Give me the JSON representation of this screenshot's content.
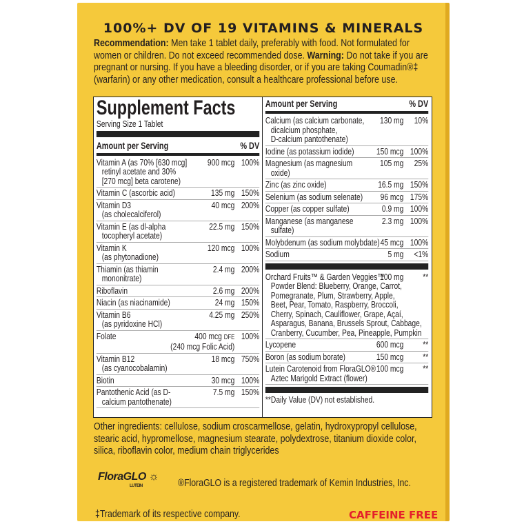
{
  "headline": "100%+ DV OF 19 VITAMINS & MINERALS",
  "intro": {
    "rec_label": "Recommendation:",
    "rec_text": " Men take 1 tablet daily, preferably with food. Not formulated for women or children. Do not exceed recommended dose. ",
    "warn_label": "Warning:",
    "warn_text": " Do not take if you are pregnant or nursing. If you have a bleeding disorder, or if you are taking Coumadin®‡ (warfarin) or any other medication, consult a healthcare professional before use."
  },
  "facts": {
    "title": "Supplement Facts",
    "serving": "Serving Size 1 Tablet",
    "amount_header": "Amount per Serving",
    "dv_header": "% DV",
    "left": [
      {
        "name": "Vitamin A (as 70% [630 mcg]\nretinyl acetate and 30%\n[270 mcg] beta carotene)",
        "amount": "900 mcg",
        "dv": "100%"
      },
      {
        "name": "Vitamin C (ascorbic acid)",
        "amount": "135 mg",
        "dv": "150%"
      },
      {
        "name": "Vitamin D3\n(as cholecalciferol)",
        "amount": "40 mcg",
        "dv": "200%"
      },
      {
        "name": "Vitamin E (as dl-alpha\ntocopheryl acetate)",
        "amount": "22.5 mg",
        "dv": "150%"
      },
      {
        "name": "Vitamin K\n(as phytonadione)",
        "amount": "120 mcg",
        "dv": "100%"
      },
      {
        "name": "Thiamin (as thiamin\nmononitrate)",
        "amount": "2.4 mg",
        "dv": "200%"
      },
      {
        "name": "Riboflavin",
        "amount": "2.6 mg",
        "dv": "200%"
      },
      {
        "name": "Niacin (as niacinamide)",
        "amount": "24 mg",
        "dv": "150%"
      },
      {
        "name": "Vitamin B6\n(as pyridoxine HCl)",
        "amount": "4.25 mg",
        "dv": "250%"
      },
      {
        "name": "Folate",
        "amount": "400 mcg",
        "unit": "DFE",
        "dv": "100%",
        "note": "(240 mcg Folic Acid)"
      },
      {
        "name": "Vitamin B12\n(as cyanocobalamin)",
        "amount": "18 mcg",
        "dv": "750%"
      },
      {
        "name": "Biotin",
        "amount": "30 mcg",
        "dv": "100%"
      },
      {
        "name": "Pantothenic Acid (as D-\ncalcium pantothenate)",
        "amount": "7.5 mg",
        "dv": "150%"
      }
    ],
    "right": [
      {
        "name": "Calcium (as calcium carbonate,\ndicalcium phosphate,\nD-calcium pantothenate)",
        "amount": "130 mg",
        "dv": "10%"
      },
      {
        "name": "Iodine (as potassium iodide)",
        "amount": "150 mcg",
        "dv": "100%"
      },
      {
        "name": "Magnesium (as magnesium\noxide)",
        "amount": "105 mg",
        "dv": "25%"
      },
      {
        "name": "Zinc (as zinc oxide)",
        "amount": "16.5 mg",
        "dv": "150%"
      },
      {
        "name": "Selenium (as sodium selenate)",
        "amount": "96 mcg",
        "dv": "175%"
      },
      {
        "name": "Copper (as copper sulfate)",
        "amount": "0.9 mg",
        "dv": "100%"
      },
      {
        "name": "Manganese (as manganese\nsulfate)",
        "amount": "2.3 mg",
        "dv": "100%"
      },
      {
        "name": "Molybdenum (as sodium molybdate)",
        "amount": "45 mcg",
        "dv": "100%"
      },
      {
        "name": "Sodium",
        "amount": "5 mg",
        "dv": "<1%"
      }
    ],
    "blend": [
      {
        "name": "Orchard Fruits™ & Garden Veggies™\nPowder Blend: Blueberry, Orange, Carrot,\nPomegranate, Plum, Strawberry, Apple,\nBeet, Pear, Tomato, Raspberry, Broccoli,\nCherry, Spinach, Cauliflower, Grape, Açaí,\nAsparagus, Banana, Brussels Sprout, Cabbage,\nCranberry, Cucumber, Pea, Pineapple, Pumpkin",
        "amount": "100 mg",
        "dv": "**"
      },
      {
        "name": "Lycopene",
        "amount": "600 mcg",
        "dv": "**"
      },
      {
        "name": "Boron (as sodium borate)",
        "amount": "150 mcg",
        "dv": "**"
      },
      {
        "name": "Lutein Carotenoid from FloraGLO®\nAztec Marigold Extract (flower)",
        "amount": "100 mcg",
        "dv": "**"
      }
    ],
    "footnote": "**Daily Value (DV) not established."
  },
  "other_ingredients": "Other ingredients: cellulose, sodium croscarmellose, gelatin, hydroxypropyl cellulose, stearic acid, hypromellose, magnesium stearate, polydextrose, titanium dioxide color, silica, riboflavin color, medium chain triglycerides",
  "logo": {
    "text": "FloraGLO",
    "sub": "LUTEIN"
  },
  "trademark_floraglo": "®FloraGLO is a registered trademark of Kemin Industries, Inc.",
  "trademark_other": "‡Trademark of its respective company.",
  "caffeine_free": "CAFFEINE FREE",
  "colors": {
    "background": "#f5c93b",
    "caffeine_free": "#e4202a"
  }
}
